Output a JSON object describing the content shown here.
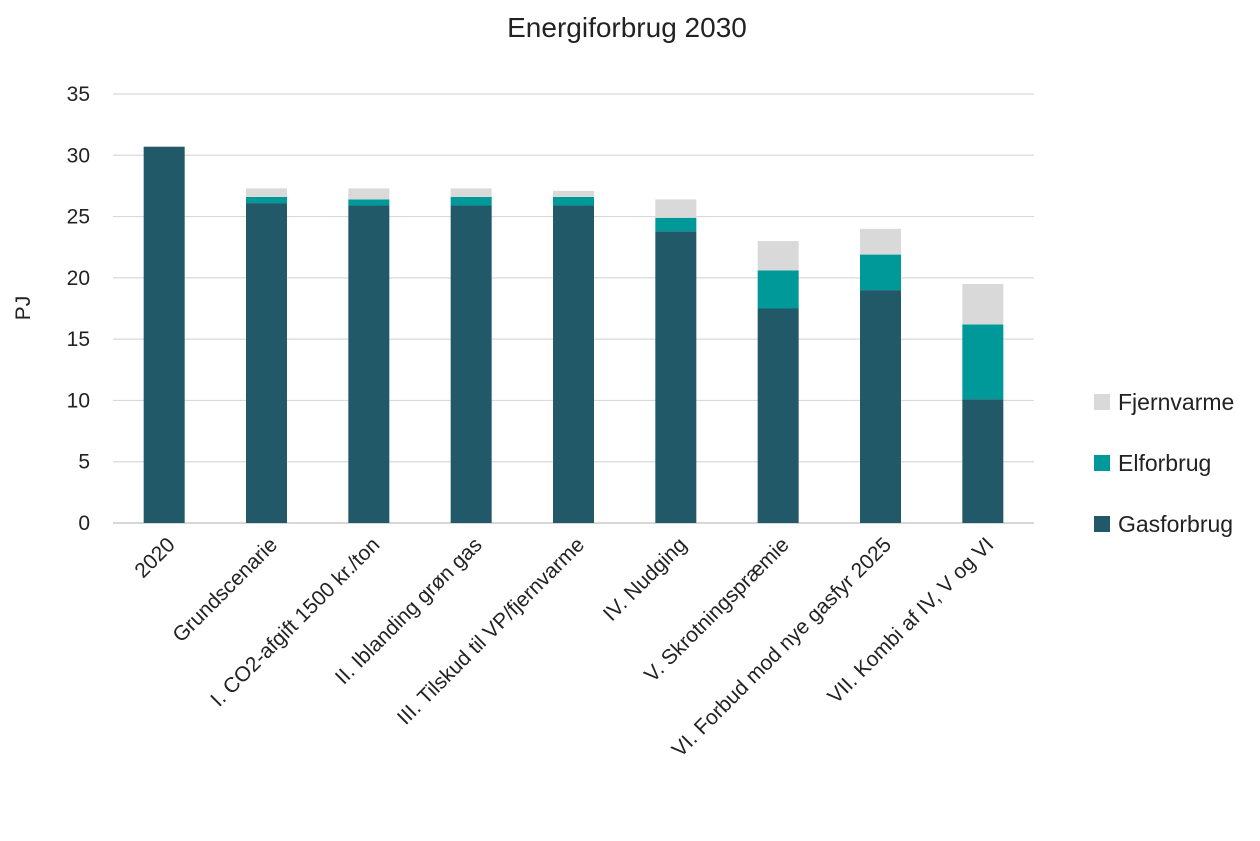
{
  "chart_data": {
    "type": "bar",
    "stacked": true,
    "title": "Energiforbrug 2030",
    "xlabel": "",
    "ylabel": "PJ",
    "ylim": [
      0,
      35
    ],
    "yticks": [
      "0",
      "5",
      "10",
      "15",
      "20",
      "25",
      "30",
      "35"
    ],
    "grid": true,
    "legend_position": "right",
    "categories": [
      "2020",
      "Grundscenarie",
      "I. CO2-afgift 1500 kr./ton",
      "II. Iblanding grøn gas",
      "III. Tilskud til VP/fjernvarme",
      "IV. Nudging",
      "V. Skrotningspræmie",
      "VI. Forbud mod nye gasfyr 2025",
      "VII. Kombi af IV, V og VI"
    ],
    "series": [
      {
        "name": "Gasforbrug",
        "color": "#215968",
        "values": [
          30.7,
          26.1,
          25.9,
          25.9,
          25.9,
          23.8,
          17.5,
          19.0,
          10.1
        ]
      },
      {
        "name": "Elforbrug",
        "color": "#009999",
        "values": [
          0,
          0.5,
          0.5,
          0.7,
          0.7,
          1.1,
          3.1,
          2.9,
          6.1
        ]
      },
      {
        "name": "Fjernvarme",
        "color": "#d9d9d9",
        "values": [
          0,
          0.7,
          0.9,
          0.7,
          0.5,
          1.5,
          2.4,
          2.1,
          3.3
        ]
      }
    ],
    "legend_order": [
      "Fjernvarme",
      "Elforbrug",
      "Gasforbrug"
    ]
  }
}
